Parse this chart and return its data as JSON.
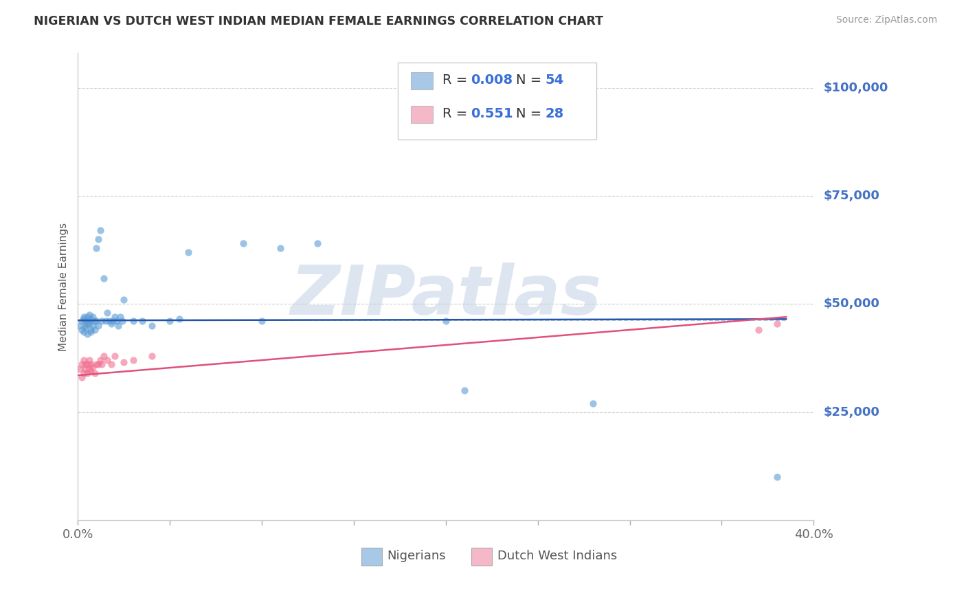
{
  "title": "NIGERIAN VS DUTCH WEST INDIAN MEDIAN FEMALE EARNINGS CORRELATION CHART",
  "source": "Source: ZipAtlas.com",
  "ylabel": "Median Female Earnings",
  "yticks": [
    25000,
    50000,
    75000,
    100000
  ],
  "ytick_labels": [
    "$25,000",
    "$50,000",
    "$75,000",
    "$100,000"
  ],
  "watermark": "ZIPatlas",
  "legend_entries": [
    {
      "color": "#a8c8e8",
      "R": "0.008",
      "N": "54",
      "label": "Nigerians"
    },
    {
      "color": "#f4b8c8",
      "R": "0.551",
      "N": "28",
      "label": "Dutch West Indians"
    }
  ],
  "nigerian_scatter": {
    "x": [
      0.001,
      0.002,
      0.002,
      0.003,
      0.003,
      0.003,
      0.004,
      0.004,
      0.004,
      0.005,
      0.005,
      0.005,
      0.006,
      0.006,
      0.006,
      0.007,
      0.007,
      0.007,
      0.008,
      0.008,
      0.009,
      0.009,
      0.01,
      0.01,
      0.011,
      0.011,
      0.012,
      0.013,
      0.014,
      0.015,
      0.016,
      0.017,
      0.018,
      0.019,
      0.02,
      0.021,
      0.022,
      0.023,
      0.024,
      0.025,
      0.03,
      0.035,
      0.04,
      0.05,
      0.055,
      0.06,
      0.09,
      0.1,
      0.11,
      0.13,
      0.2,
      0.21,
      0.28,
      0.38
    ],
    "y": [
      45000,
      46000,
      44000,
      47000,
      43500,
      46500,
      45000,
      46000,
      44500,
      45500,
      47000,
      43000,
      46000,
      45500,
      47500,
      44000,
      46500,
      43500,
      45000,
      47000,
      46000,
      44000,
      63000,
      46000,
      65000,
      45000,
      67000,
      46000,
      56000,
      46000,
      48000,
      46000,
      45500,
      46000,
      47000,
      46000,
      45000,
      47000,
      46000,
      51000,
      46000,
      46000,
      45000,
      46000,
      46500,
      62000,
      64000,
      46000,
      63000,
      64000,
      46000,
      30000,
      27000,
      10000
    ],
    "color": "#5b9bd5",
    "alpha": 0.6,
    "size": 55
  },
  "dutch_scatter": {
    "x": [
      0.001,
      0.002,
      0.002,
      0.003,
      0.003,
      0.004,
      0.004,
      0.005,
      0.005,
      0.006,
      0.006,
      0.007,
      0.007,
      0.008,
      0.009,
      0.01,
      0.011,
      0.012,
      0.013,
      0.014,
      0.016,
      0.018,
      0.02,
      0.025,
      0.03,
      0.04,
      0.37,
      0.38
    ],
    "y": [
      35000,
      33000,
      36000,
      34000,
      37000,
      35000,
      36000,
      34000,
      36000,
      35000,
      37000,
      34500,
      36000,
      35500,
      34000,
      36000,
      36000,
      37000,
      36000,
      38000,
      37000,
      36000,
      38000,
      36500,
      37000,
      38000,
      44000,
      45500
    ],
    "color": "#f07090",
    "alpha": 0.6,
    "size": 55
  },
  "nigerian_trend": {
    "x": [
      0.0,
      0.385
    ],
    "y": [
      46200,
      46500
    ],
    "color": "#2255aa",
    "linewidth": 1.8
  },
  "dutch_trend": {
    "x": [
      0.0,
      0.385
    ],
    "y": [
      33500,
      47000
    ],
    "color": "#e0507a",
    "linewidth": 1.8
  },
  "dashed_line_y": 46200,
  "bg_color": "#ffffff",
  "xlim": [
    0.0,
    0.4
  ],
  "ylim": [
    0,
    108000
  ],
  "title_color": "#333333",
  "source_color": "#999999",
  "ytick_color": "#4472c4",
  "watermark_color": "#dde6f0",
  "watermark_fontsize": 72,
  "xtick_positions": [
    0.0,
    0.05,
    0.1,
    0.15,
    0.2,
    0.25,
    0.3,
    0.35,
    0.4
  ],
  "xtick_labels_show": [
    "0.0%",
    "",
    "",
    "",
    "",
    "",
    "",
    "",
    "40.0%"
  ]
}
